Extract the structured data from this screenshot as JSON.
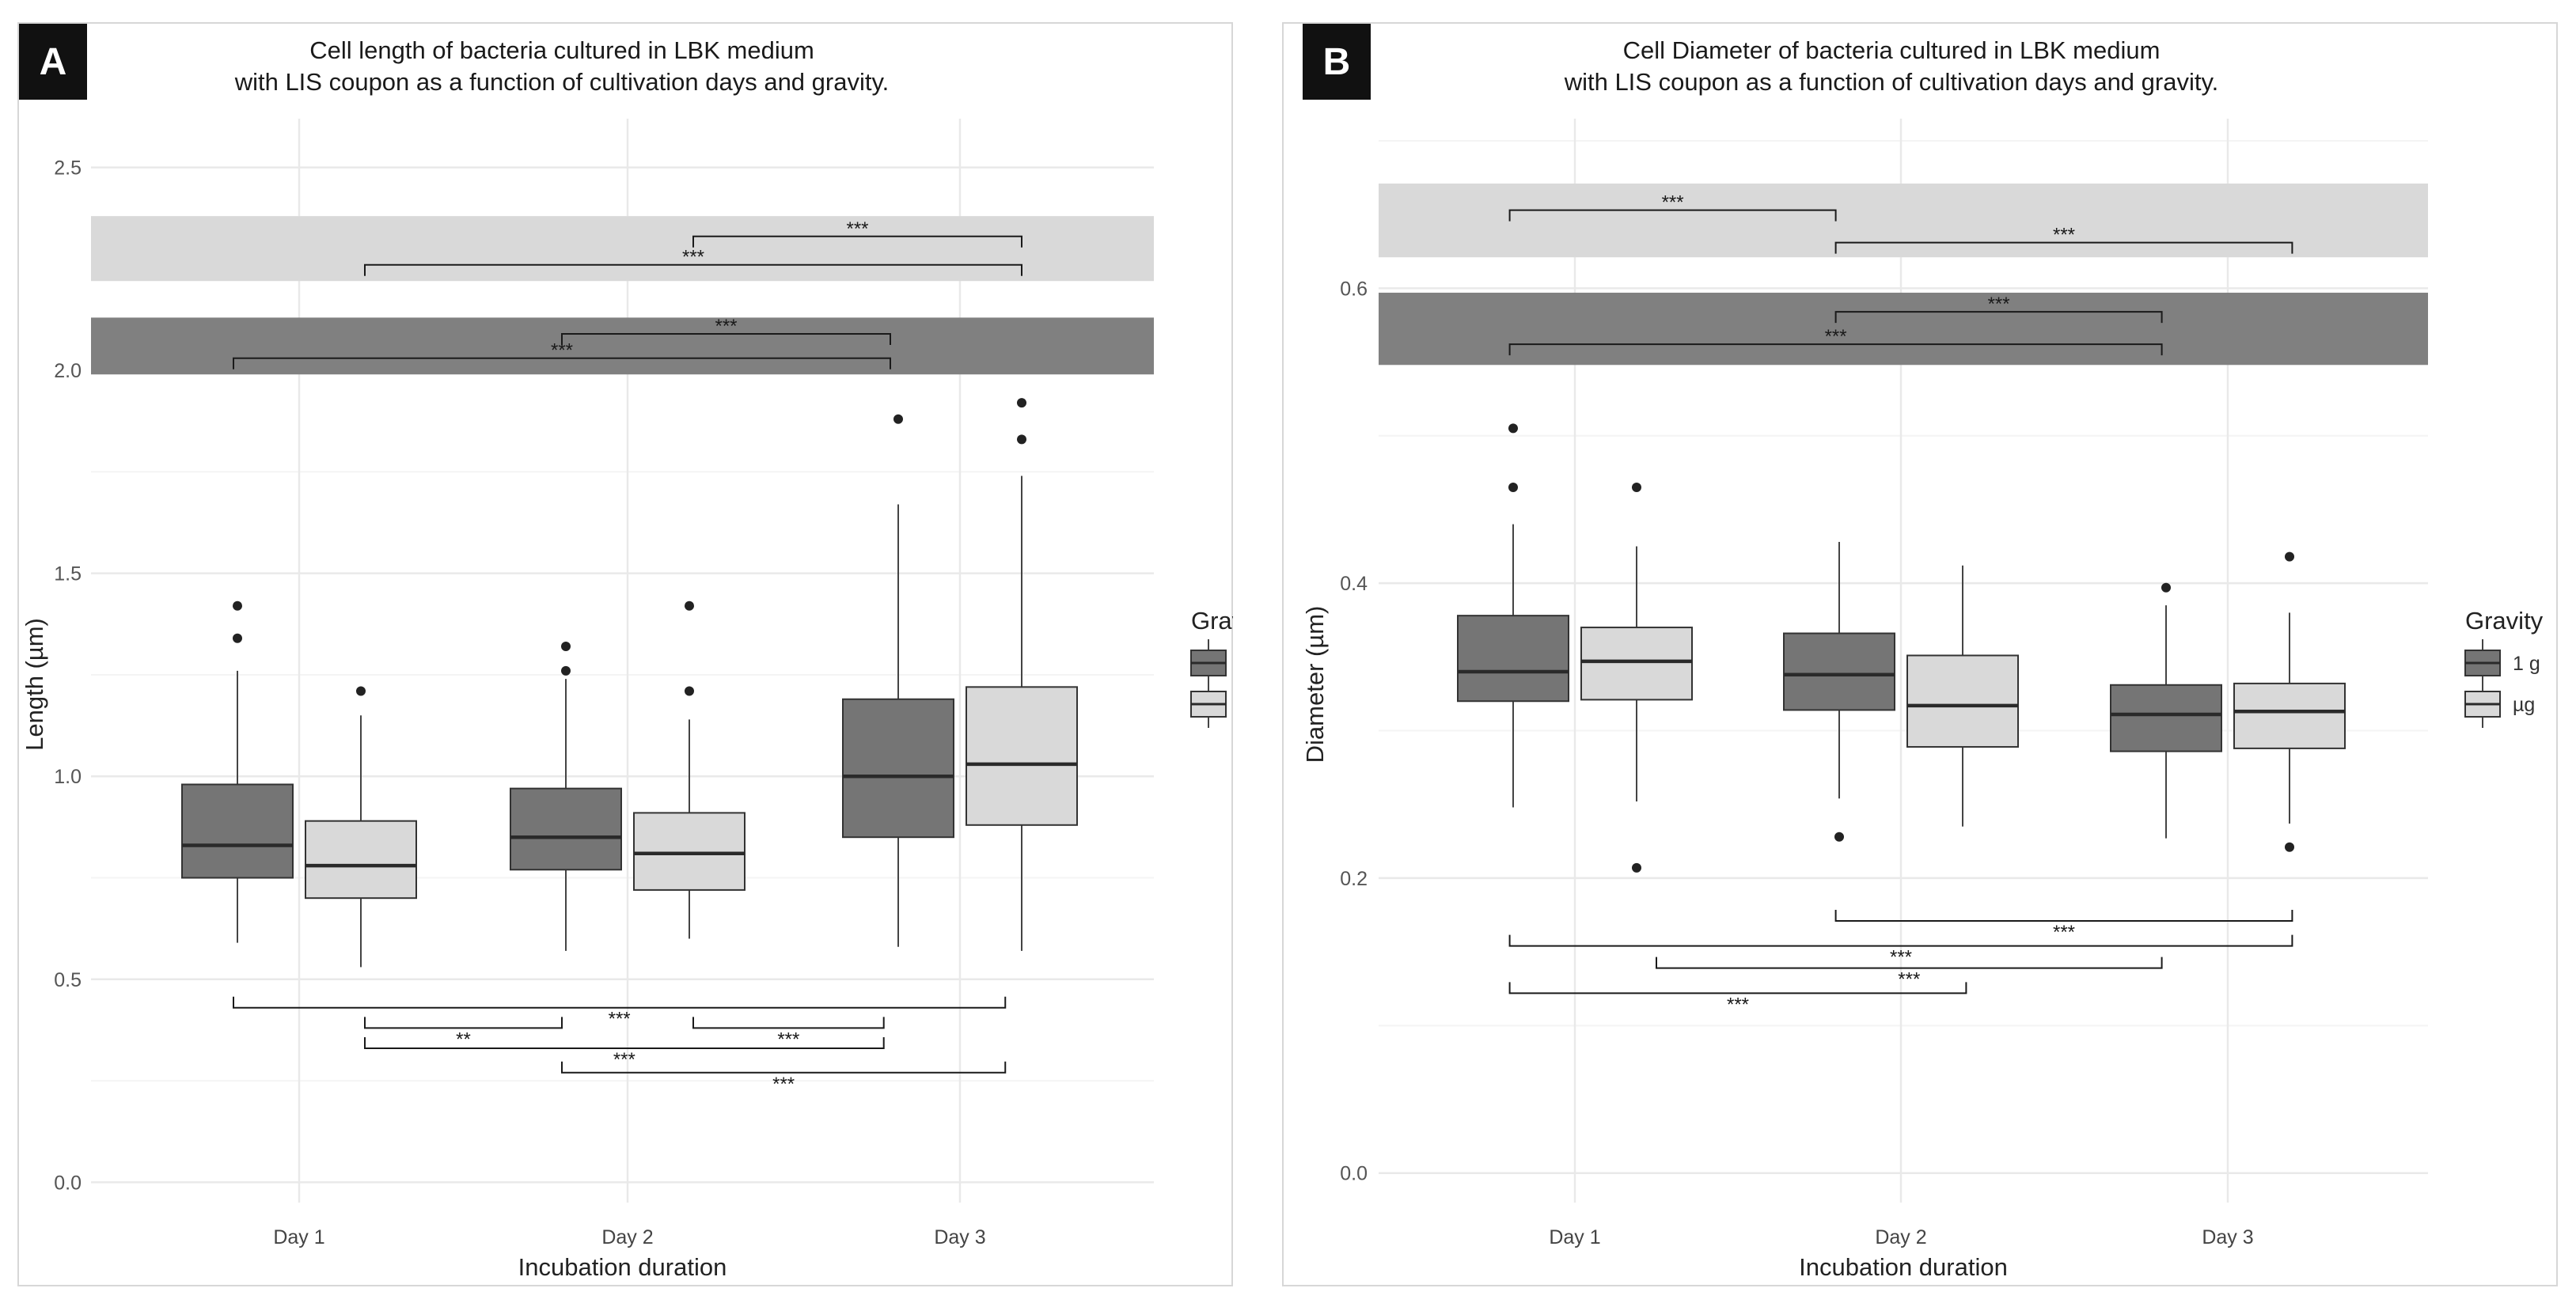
{
  "chart_data": [
    {
      "type": "box",
      "panel": "A",
      "title_line1": "Cell length of bacteria cultured in LBK medium",
      "title_line2": "with LIS coupon as a function of cultivation days and gravity.",
      "xlabel": "Incubation duration",
      "ylabel": "Length (µm)",
      "ylim": [
        -0.05,
        2.62
      ],
      "yticks": [
        0.0,
        0.5,
        1.0,
        1.5,
        2.0,
        2.5
      ],
      "ytick_labels": [
        "0.0",
        "0.5",
        "1.0",
        "1.5",
        "2.0",
        "2.5"
      ],
      "categories": [
        "Day 1",
        "Day 2",
        "Day 3"
      ],
      "legend_title": "Gravity",
      "series": [
        {
          "name": "1 g",
          "color": "#757575",
          "boxes": [
            {
              "min": 0.59,
              "q1": 0.75,
              "median": 0.83,
              "q3": 0.98,
              "max": 1.26,
              "outliers": [
                1.34,
                1.42
              ]
            },
            {
              "min": 0.57,
              "q1": 0.77,
              "median": 0.85,
              "q3": 0.97,
              "max": 1.24,
              "outliers": [
                1.26,
                1.32
              ]
            },
            {
              "min": 0.58,
              "q1": 0.85,
              "median": 1.0,
              "q3": 1.19,
              "max": 1.67,
              "outliers": [
                1.88
              ]
            }
          ]
        },
        {
          "name": "µg",
          "color": "#d9d9d9",
          "boxes": [
            {
              "min": 0.53,
              "q1": 0.7,
              "median": 0.78,
              "q3": 0.89,
              "max": 1.15,
              "outliers": [
                1.21
              ]
            },
            {
              "min": 0.6,
              "q1": 0.72,
              "median": 0.81,
              "q3": 0.91,
              "max": 1.14,
              "outliers": [
                1.21,
                1.42
              ]
            },
            {
              "min": 0.57,
              "q1": 0.88,
              "median": 1.03,
              "q3": 1.22,
              "max": 1.74,
              "outliers": [
                1.83,
                1.92
              ]
            }
          ]
        }
      ],
      "bands": [
        {
          "fill": "#d9d9d9",
          "y0": 2.22,
          "y1": 2.38
        },
        {
          "fill": "#808080",
          "y0": 1.99,
          "y1": 2.13
        }
      ],
      "significance": [
        {
          "x1": 2.2,
          "x2": 3.2,
          "y": 2.33,
          "dir": "down",
          "label": "***"
        },
        {
          "x1": 1.2,
          "x2": 3.2,
          "y": 2.26,
          "dir": "down",
          "label": "***"
        },
        {
          "x1": 1.8,
          "x2": 2.8,
          "y": 2.09,
          "dir": "down",
          "label": "***"
        },
        {
          "x1": 0.8,
          "x2": 2.8,
          "y": 2.03,
          "dir": "down",
          "label": "***"
        },
        {
          "x1": 0.8,
          "x2": 3.15,
          "y": 0.43,
          "dir": "up",
          "label": "***"
        },
        {
          "x1": 1.2,
          "x2": 1.8,
          "y": 0.38,
          "dir": "up",
          "label": "**"
        },
        {
          "x1": 2.2,
          "x2": 2.78,
          "y": 0.38,
          "dir": "up",
          "label": "***"
        },
        {
          "x1": 1.2,
          "x2": 2.78,
          "y": 0.33,
          "dir": "up",
          "label": "***"
        },
        {
          "x1": 1.8,
          "x2": 3.15,
          "y": 0.27,
          "dir": "up",
          "label": "***"
        }
      ]
    },
    {
      "type": "box",
      "panel": "B",
      "title_line1": "Cell Diameter of bacteria cultured in LBK medium",
      "title_line2": "with LIS coupon as a function of cultivation days and gravity.",
      "xlabel": "Incubation duration",
      "ylabel": "Diameter (µm)",
      "ylim": [
        -0.02,
        0.715
      ],
      "yticks": [
        0.0,
        0.2,
        0.4,
        0.6
      ],
      "ytick_labels": [
        "0.0",
        "0.2",
        "0.4",
        "0.6"
      ],
      "categories": [
        "Day 1",
        "Day 2",
        "Day 3"
      ],
      "legend_title": "Gravity",
      "series": [
        {
          "name": "1 g",
          "color": "#757575",
          "boxes": [
            {
              "min": 0.248,
              "q1": 0.32,
              "median": 0.34,
              "q3": 0.378,
              "max": 0.44,
              "outliers": [
                0.465,
                0.505
              ]
            },
            {
              "min": 0.254,
              "q1": 0.314,
              "median": 0.338,
              "q3": 0.366,
              "max": 0.428,
              "outliers": [
                0.228
              ]
            },
            {
              "min": 0.227,
              "q1": 0.286,
              "median": 0.311,
              "q3": 0.331,
              "max": 0.385,
              "outliers": [
                0.397
              ]
            }
          ]
        },
        {
          "name": "µg",
          "color": "#d9d9d9",
          "boxes": [
            {
              "min": 0.252,
              "q1": 0.321,
              "median": 0.347,
              "q3": 0.37,
              "max": 0.425,
              "outliers": [
                0.207,
                0.465
              ]
            },
            {
              "min": 0.235,
              "q1": 0.289,
              "median": 0.317,
              "q3": 0.351,
              "max": 0.412,
              "outliers": []
            },
            {
              "min": 0.237,
              "q1": 0.288,
              "median": 0.313,
              "q3": 0.332,
              "max": 0.38,
              "outliers": [
                0.221,
                0.418
              ]
            }
          ]
        }
      ],
      "bands": [
        {
          "fill": "#d9d9d9",
          "y0": 0.621,
          "y1": 0.671
        },
        {
          "fill": "#808080",
          "y0": 0.548,
          "y1": 0.597
        }
      ],
      "significance": [
        {
          "x1": 0.8,
          "x2": 1.8,
          "y": 0.653,
          "dir": "down",
          "label": "***"
        },
        {
          "x1": 1.8,
          "x2": 3.2,
          "y": 0.631,
          "dir": "down",
          "label": "***"
        },
        {
          "x1": 1.8,
          "x2": 2.8,
          "y": 0.584,
          "dir": "down",
          "label": "***"
        },
        {
          "x1": 0.8,
          "x2": 2.8,
          "y": 0.562,
          "dir": "down",
          "label": "***"
        },
        {
          "x1": 1.8,
          "x2": 3.2,
          "y": 0.171,
          "dir": "up",
          "label": "***"
        },
        {
          "x1": 0.8,
          "x2": 3.2,
          "y": 0.154,
          "dir": "up",
          "label": "***"
        },
        {
          "x1": 1.25,
          "x2": 2.8,
          "y": 0.139,
          "dir": "up",
          "label": "***"
        },
        {
          "x1": 0.8,
          "x2": 2.2,
          "y": 0.122,
          "dir": "up",
          "label": "***"
        }
      ]
    }
  ]
}
